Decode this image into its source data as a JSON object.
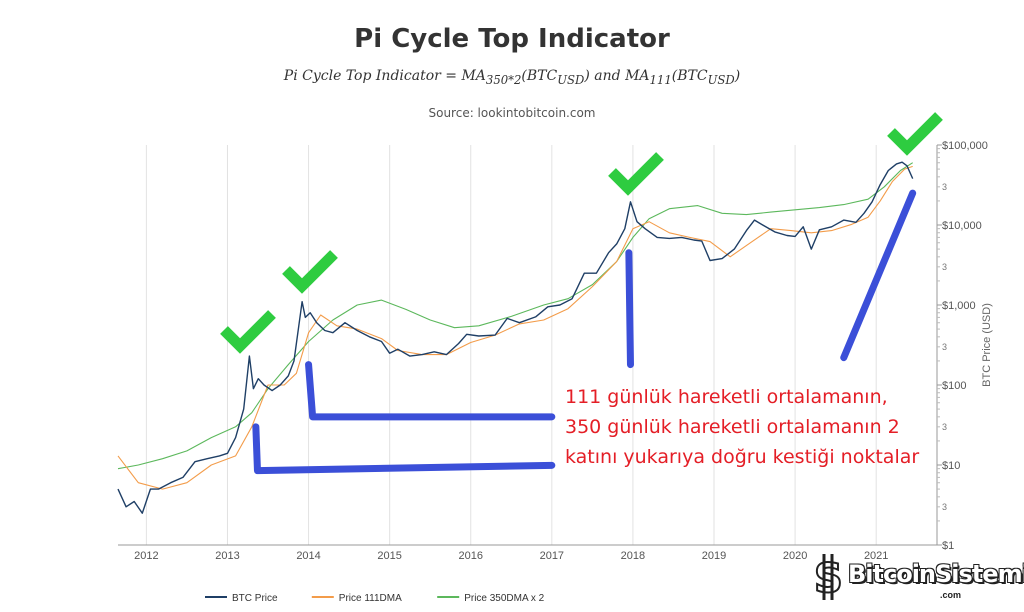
{
  "chart_data": {
    "type": "line",
    "title": "Pi Cycle Top Indicator",
    "subtitle": "Pi Cycle Top Indicator = MA350*2(BTCUSD) and MA111(BTCUSD)",
    "source": "Source: lookintobitcoin.com",
    "ylabel": "BTC Price (USD)",
    "yscale": "log",
    "ylim": [
      1,
      100000
    ],
    "xlim": [
      2011.65,
      2021.75
    ],
    "x_ticks": [
      "2012",
      "2013",
      "2014",
      "2015",
      "2016",
      "2017",
      "2018",
      "2019",
      "2020",
      "2021"
    ],
    "y_ticks": [
      "$1",
      "$10",
      "$100",
      "$1,000",
      "$10,000",
      "$100,000"
    ],
    "legend_position": "bottom-left",
    "series": [
      {
        "name": "BTC Price",
        "color": "#1f3f66",
        "x": [
          2011.65,
          2011.75,
          2011.85,
          2011.95,
          2012.05,
          2012.15,
          2012.3,
          2012.45,
          2012.6,
          2012.75,
          2012.9,
          2013.0,
          2013.1,
          2013.2,
          2013.27,
          2013.32,
          2013.38,
          2013.45,
          2013.55,
          2013.65,
          2013.75,
          2013.82,
          2013.88,
          2013.92,
          2013.96,
          2014.02,
          2014.1,
          2014.2,
          2014.3,
          2014.45,
          2014.6,
          2014.75,
          2014.9,
          2015.0,
          2015.1,
          2015.25,
          2015.4,
          2015.55,
          2015.7,
          2015.85,
          2015.95,
          2016.1,
          2016.3,
          2016.45,
          2016.6,
          2016.8,
          2016.95,
          2017.1,
          2017.25,
          2017.4,
          2017.55,
          2017.7,
          2017.8,
          2017.9,
          2017.97,
          2018.05,
          2018.15,
          2018.3,
          2018.45,
          2018.6,
          2018.75,
          2018.85,
          2018.95,
          2019.1,
          2019.25,
          2019.4,
          2019.5,
          2019.6,
          2019.75,
          2019.9,
          2020.0,
          2020.1,
          2020.2,
          2020.3,
          2020.45,
          2020.6,
          2020.75,
          2020.85,
          2020.95,
          2021.05,
          2021.15,
          2021.25,
          2021.32,
          2021.38,
          2021.45
        ],
        "y": [
          5,
          3,
          3.5,
          2.5,
          5,
          5,
          6,
          7,
          11,
          12,
          13,
          14,
          22,
          50,
          230,
          90,
          120,
          100,
          85,
          100,
          130,
          200,
          550,
          1100,
          700,
          800,
          600,
          480,
          450,
          600,
          480,
          400,
          350,
          250,
          280,
          230,
          240,
          260,
          240,
          330,
          430,
          410,
          420,
          680,
          600,
          710,
          950,
          1000,
          1200,
          2500,
          2500,
          4500,
          5800,
          9000,
          19500,
          11000,
          9000,
          7000,
          6800,
          7000,
          6500,
          6300,
          3600,
          3800,
          5000,
          8500,
          11500,
          10000,
          8200,
          7400,
          7200,
          9500,
          5000,
          8700,
          9500,
          11500,
          10800,
          14000,
          19500,
          32000,
          48000,
          58000,
          61000,
          55000,
          38000
        ]
      },
      {
        "name": "Price 111DMA",
        "color": "#f39c4a",
        "x": [
          2011.65,
          2011.9,
          2012.2,
          2012.5,
          2012.8,
          2013.1,
          2013.3,
          2013.5,
          2013.7,
          2013.85,
          2014.0,
          2014.15,
          2014.35,
          2014.6,
          2014.9,
          2015.1,
          2015.4,
          2015.7,
          2016.0,
          2016.3,
          2016.6,
          2016.9,
          2017.2,
          2017.5,
          2017.8,
          2018.0,
          2018.2,
          2018.45,
          2018.7,
          2018.95,
          2019.2,
          2019.45,
          2019.7,
          2019.95,
          2020.2,
          2020.45,
          2020.7,
          2020.9,
          2021.05,
          2021.2,
          2021.35,
          2021.45
        ],
        "y": [
          13,
          6,
          5,
          6,
          10,
          13,
          30,
          100,
          100,
          140,
          450,
          750,
          550,
          500,
          380,
          270,
          240,
          240,
          340,
          420,
          580,
          650,
          900,
          1700,
          3500,
          9000,
          11000,
          8000,
          7000,
          6200,
          4000,
          6000,
          9000,
          8500,
          8000,
          8500,
          10200,
          12500,
          20000,
          35000,
          50000,
          54000
        ]
      },
      {
        "name": "Price 350DMA x 2",
        "color": "#5cb85c",
        "x": [
          2011.65,
          2011.9,
          2012.2,
          2012.5,
          2012.8,
          2013.1,
          2013.3,
          2013.5,
          2013.75,
          2014.0,
          2014.3,
          2014.6,
          2014.9,
          2015.2,
          2015.5,
          2015.8,
          2016.1,
          2016.5,
          2016.9,
          2017.2,
          2017.5,
          2017.8,
          2018.0,
          2018.2,
          2018.45,
          2018.8,
          2019.1,
          2019.4,
          2019.7,
          2020.0,
          2020.3,
          2020.6,
          2020.9,
          2021.1,
          2021.3,
          2021.45
        ],
        "y": [
          9,
          10,
          12,
          15,
          22,
          30,
          45,
          90,
          180,
          350,
          650,
          1000,
          1150,
          880,
          650,
          520,
          550,
          720,
          1000,
          1200,
          1800,
          3500,
          7000,
          12000,
          16000,
          17500,
          14000,
          13500,
          14500,
          15500,
          16500,
          18000,
          21000,
          30000,
          48000,
          60000
        ]
      }
    ],
    "annotation": [
      "111 günlük hareketli ortalamanın,",
      "350 günlük hareketli ortalamanın 2",
      "katını yukarıya doğru kestiği noktalar"
    ],
    "checkmark_dates": [
      2013.3,
      2013.95,
      2017.95,
      2021.3
    ],
    "watermark": "BitcoinSistemi",
    "watermark_sub": ".com",
    "colors": {
      "checkmark": "#2ecc40",
      "marker": "#3b4fd8",
      "annotation": "#e41e26",
      "grid": "#e2e2e2"
    }
  }
}
